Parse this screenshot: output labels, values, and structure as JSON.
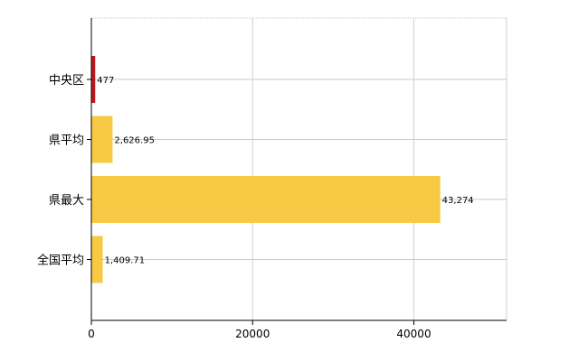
{
  "chart_data": {
    "type": "bar",
    "orientation": "horizontal",
    "categories": [
      "中央区",
      "県平均",
      "県最大",
      "全国平均"
    ],
    "values": [
      477,
      2626.95,
      43274,
      1409.71
    ],
    "data_labels": [
      "477",
      "2,626.95",
      "43,274",
      "1,409.71"
    ],
    "bar_colors": [
      "#c0181f",
      "#f7c945",
      "#f7c945",
      "#f7c945"
    ],
    "xlim": [
      0,
      51500
    ],
    "x_ticks": [
      0,
      20000,
      40000
    ],
    "x_tick_labels": [
      "0",
      "20000",
      "40000"
    ],
    "grid": true,
    "legend": "none"
  }
}
